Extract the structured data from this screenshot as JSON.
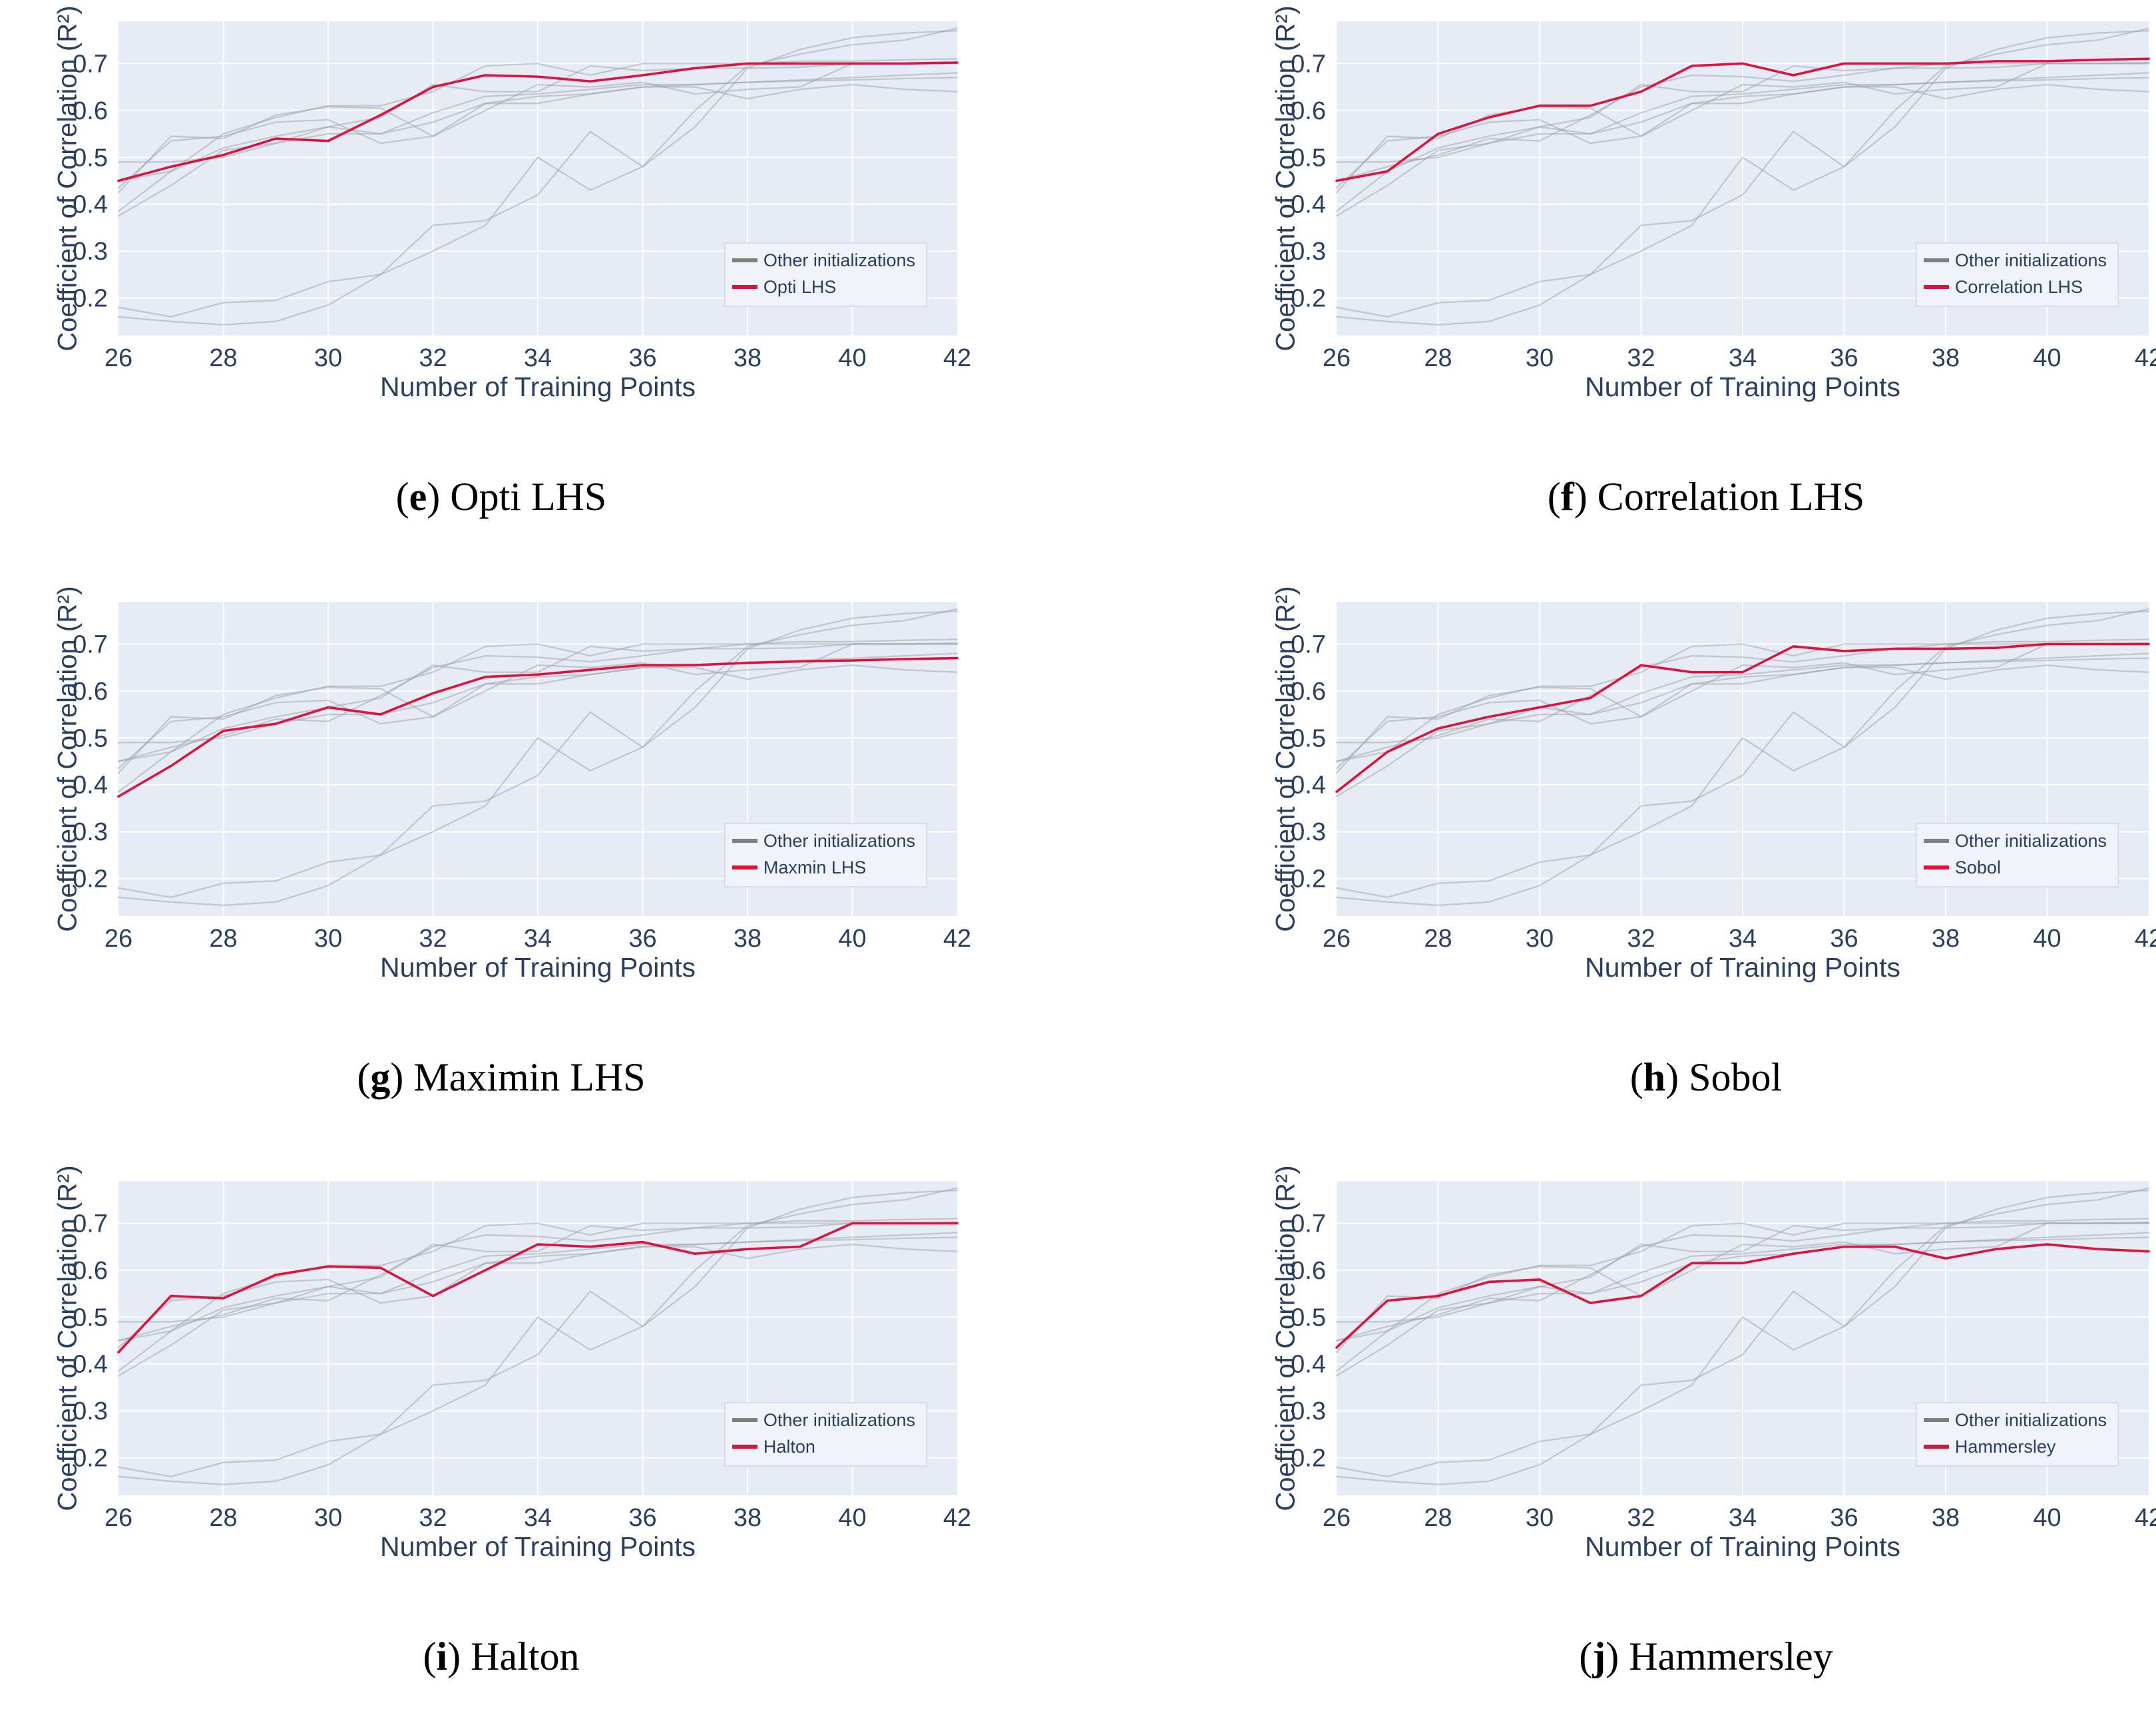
{
  "page": {
    "background": "#ffffff"
  },
  "chart_data": {
    "type": "line",
    "x_label": "Number of Training Points",
    "y_label": "Coefficient of Correlation (R²)",
    "paren_open": "(",
    "paren_close": ")",
    "x": [
      26,
      27,
      28,
      29,
      30,
      31,
      32,
      33,
      34,
      35,
      36,
      37,
      38,
      39,
      40,
      41,
      42
    ],
    "x_tick_labels": [
      "26",
      "28",
      "30",
      "32",
      "34",
      "36",
      "38",
      "40",
      "42"
    ],
    "y_tick_labels": [
      "0.2",
      "0.3",
      "0.4",
      "0.5",
      "0.6",
      "0.7"
    ],
    "xlim": [
      26,
      42
    ],
    "ylim": [
      0.12,
      0.79
    ],
    "grid": true,
    "legend_position": "lower right",
    "colors": {
      "plot_background": "#e5ecf6",
      "gridline": "#ffffff",
      "axis_text": "#2a3f5f",
      "highlight_line": "#dc143c",
      "other_line": "#9aa0a6",
      "legend_swatch_other": "#7f7f7f",
      "legend_background": "#f0f3fa",
      "legend_border": "#d8dde8",
      "caption_text": "#000000"
    },
    "runs": {
      "opti_lhs": [
        0.45,
        0.48,
        0.505,
        0.54,
        0.535,
        0.59,
        0.65,
        0.675,
        0.672,
        0.662,
        0.675,
        0.69,
        0.7,
        0.7,
        0.7,
        0.7,
        0.702
      ],
      "correlation_lhs": [
        0.45,
        0.47,
        0.55,
        0.585,
        0.61,
        0.61,
        0.64,
        0.695,
        0.7,
        0.675,
        0.7,
        0.7,
        0.7,
        0.705,
        0.705,
        0.708,
        0.71
      ],
      "maxmin_lhs": [
        0.375,
        0.44,
        0.515,
        0.53,
        0.565,
        0.55,
        0.595,
        0.63,
        0.635,
        0.645,
        0.655,
        0.655,
        0.66,
        0.663,
        0.665,
        0.668,
        0.67
      ],
      "sobol": [
        0.385,
        0.47,
        0.52,
        0.545,
        0.565,
        0.585,
        0.655,
        0.64,
        0.64,
        0.695,
        0.685,
        0.69,
        0.69,
        0.692,
        0.7,
        0.7,
        0.7
      ],
      "halton": [
        0.425,
        0.545,
        0.54,
        0.59,
        0.608,
        0.605,
        0.545,
        0.6,
        0.655,
        0.65,
        0.66,
        0.635,
        0.645,
        0.65,
        0.7,
        0.7,
        0.7
      ],
      "hammersley": [
        0.435,
        0.535,
        0.545,
        0.575,
        0.58,
        0.53,
        0.545,
        0.615,
        0.615,
        0.635,
        0.65,
        0.65,
        0.625,
        0.645,
        0.655,
        0.645,
        0.64
      ],
      "slow_run_a": [
        0.18,
        0.16,
        0.19,
        0.195,
        0.235,
        0.25,
        0.355,
        0.365,
        0.42,
        0.555,
        0.48,
        0.6,
        0.695,
        0.72,
        0.74,
        0.75,
        0.775
      ],
      "slow_run_b": [
        0.16,
        0.15,
        0.143,
        0.15,
        0.185,
        0.25,
        0.3,
        0.355,
        0.5,
        0.43,
        0.48,
        0.565,
        0.69,
        0.73,
        0.755,
        0.765,
        0.77
      ],
      "mid_run": [
        0.49,
        0.49,
        0.5,
        0.53,
        0.55,
        0.55,
        0.575,
        0.615,
        0.63,
        0.635,
        0.65,
        0.655,
        0.66,
        0.665,
        0.67,
        0.675,
        0.68
      ]
    },
    "panels": [
      {
        "letter": "e",
        "caption": "Opti LHS",
        "legend_other": "Other initializations",
        "legend_highlight": "Opti LHS",
        "highlight_run": "opti_lhs"
      },
      {
        "letter": "f",
        "caption": "Correlation LHS",
        "legend_other": "Other initializations",
        "legend_highlight": "Correlation LHS",
        "highlight_run": "correlation_lhs"
      },
      {
        "letter": "g",
        "caption": "Maximin LHS",
        "legend_other": "Other initializations",
        "legend_highlight": "Maxmin LHS",
        "highlight_run": "maxmin_lhs"
      },
      {
        "letter": "h",
        "caption": "Sobol",
        "legend_other": "Other initializations",
        "legend_highlight": "Sobol",
        "highlight_run": "sobol"
      },
      {
        "letter": "i",
        "caption": "Halton",
        "legend_other": "Other initializations",
        "legend_highlight": "Halton",
        "highlight_run": "halton"
      },
      {
        "letter": "j",
        "caption": "Hammersley",
        "legend_other": "Other initializations",
        "legend_highlight": "Hammersley",
        "highlight_run": "hammersley"
      }
    ]
  }
}
